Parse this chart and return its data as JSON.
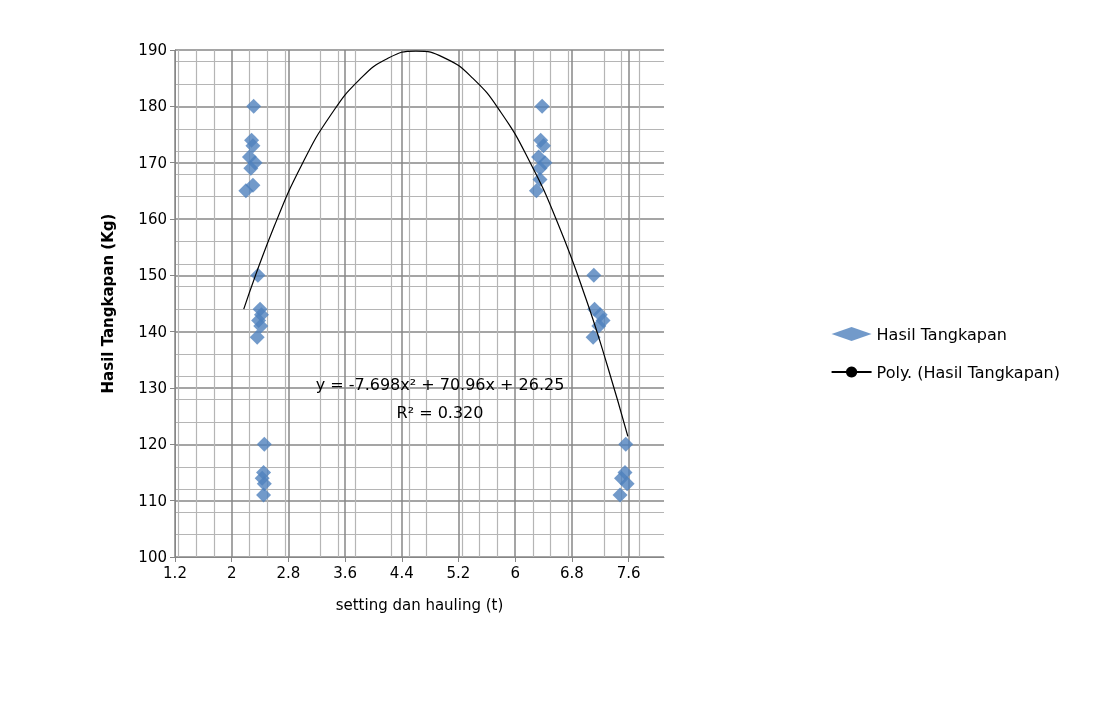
{
  "chart_data": {
    "type": "scatter",
    "xlabel": "setting dan hauling (t)",
    "ylabel": "Hasil Tangkapan (Kg)",
    "series": [
      {
        "name": "Hasil Tangkapan",
        "color": "#4f81bd",
        "x": [
          2.31,
          2.28,
          2.3,
          2.25,
          2.33,
          2.27,
          2.2,
          2.3,
          2.37,
          2.4,
          2.42,
          2.38,
          2.41,
          2.36,
          2.46,
          2.45,
          2.43,
          2.46,
          2.45,
          6.38,
          6.36,
          6.4,
          6.33,
          6.42,
          6.35,
          6.3,
          6.35,
          7.11,
          7.12,
          7.2,
          7.24,
          7.18,
          7.1,
          7.56,
          7.55,
          7.5,
          7.58,
          7.48
        ],
        "values": [
          180,
          174,
          173,
          171,
          170,
          169,
          165,
          166,
          150,
          144,
          143,
          142,
          141,
          139,
          120,
          115,
          114,
          113,
          111,
          180,
          174,
          173,
          171,
          170,
          169,
          165,
          167,
          150,
          144,
          143,
          142,
          141,
          139,
          120,
          115,
          114,
          113,
          111
        ]
      },
      {
        "name": "Poly. (Hasil Tangkapan)",
        "type": "line",
        "color": "#000000",
        "marker": "none",
        "x": [
          2.17,
          2.6,
          3,
          3.4,
          3.8,
          4.2,
          4.6,
          5,
          5.4,
          5.8,
          6.2,
          6.6,
          7,
          7.3,
          7.59
        ],
        "values": [
          144,
          158.7,
          169.9,
          178.5,
          184.7,
          188.5,
          189.8,
          188.6,
          185,
          178.9,
          170.3,
          159.3,
          145.8,
          134,
          121.4
        ]
      }
    ],
    "xlim": [
      1.2,
      8.1
    ],
    "xticks": [
      1.2,
      2,
      2.8,
      3.6,
      4.4,
      5.2,
      6,
      6.8,
      7.6
    ],
    "ylim": [
      100,
      190
    ],
    "yticks": [
      100,
      110,
      120,
      130,
      140,
      150,
      160,
      170,
      180,
      190
    ],
    "grid": true,
    "legend": "right",
    "marker": "diamond",
    "annotations": [
      "y = -7.698x² + 70.96x + 26.25",
      "R² = 0.320"
    ]
  }
}
